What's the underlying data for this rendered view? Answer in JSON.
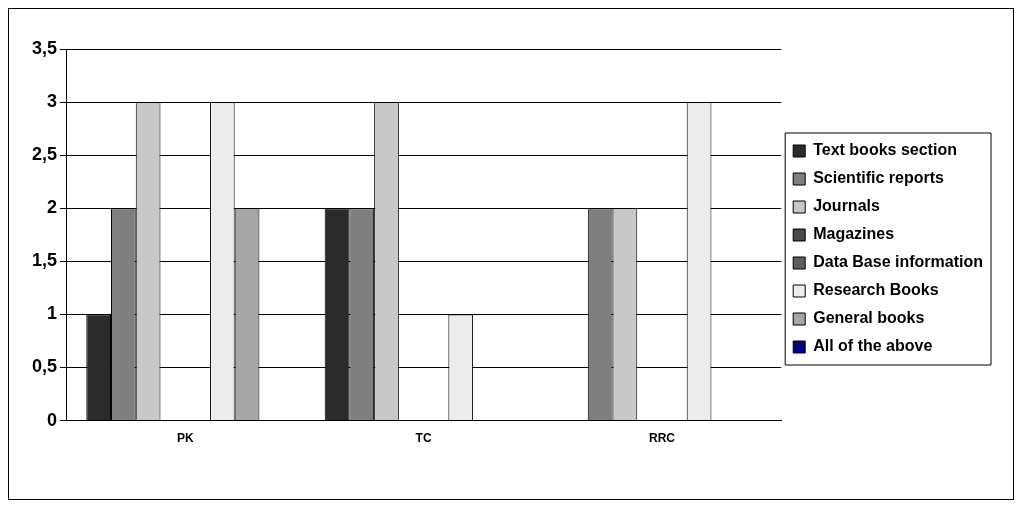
{
  "chart_data": {
    "type": "bar",
    "categories": [
      "PK",
      "TC",
      "RRC"
    ],
    "series": [
      {
        "name": "Text books section",
        "color": "#2b2b2b",
        "values": [
          1,
          2,
          0
        ]
      },
      {
        "name": "Scientific reports",
        "color": "#7f7f7f",
        "values": [
          2,
          2,
          2
        ]
      },
      {
        "name": "Journals",
        "color": "#c8c8c8",
        "values": [
          3,
          3,
          2
        ]
      },
      {
        "name": "Magazines",
        "color": "#4a4a4a",
        "values": [
          0,
          0,
          0
        ]
      },
      {
        "name": "Data Base information",
        "color": "#5e5e5e",
        "values": [
          0,
          0,
          0
        ]
      },
      {
        "name": "Research Books",
        "color": "#ececec",
        "values": [
          3,
          1,
          3
        ]
      },
      {
        "name": "General books",
        "color": "#a6a6a6",
        "values": [
          2,
          0,
          0
        ]
      },
      {
        "name": "All of the above",
        "color": "#000080",
        "values": [
          0,
          0,
          0
        ]
      }
    ],
    "ylim": [
      0,
      3.5
    ],
    "yticks": [
      {
        "value": 0,
        "label": "0"
      },
      {
        "value": 0.5,
        "label": "0,5"
      },
      {
        "value": 1,
        "label": "1"
      },
      {
        "value": 1.5,
        "label": "1,5"
      },
      {
        "value": 2,
        "label": "2"
      },
      {
        "value": 2.5,
        "label": "2,5"
      },
      {
        "value": 3,
        "label": "3"
      },
      {
        "value": 3.5,
        "label": "3,5"
      }
    ],
    "grid": "y",
    "legend": "right"
  }
}
